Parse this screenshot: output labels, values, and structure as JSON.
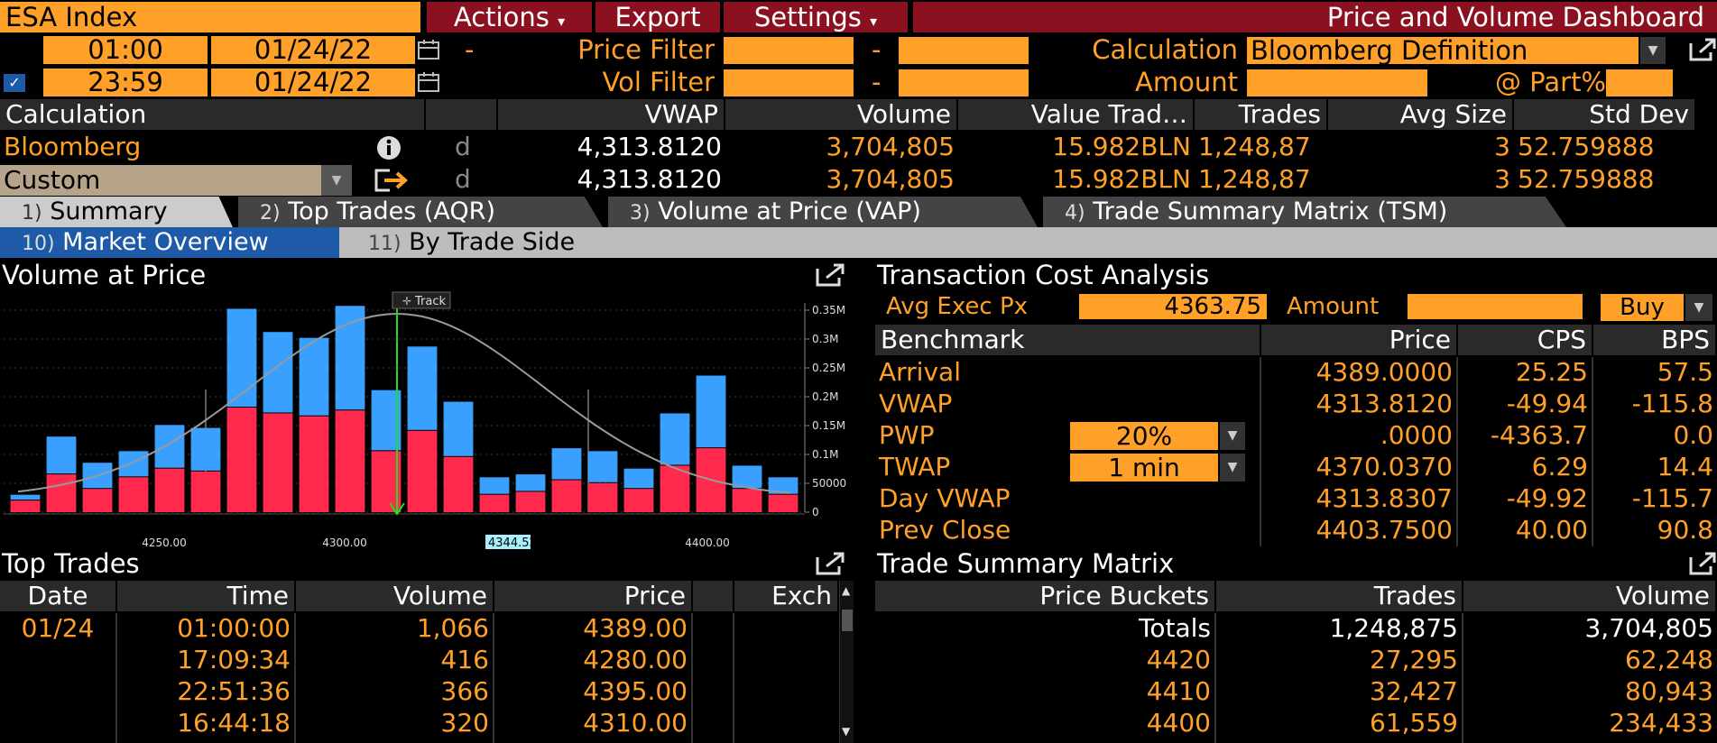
{
  "header": {
    "ticker": "ESA Index",
    "menu": [
      {
        "label": "Actions",
        "arrow": "▾"
      },
      {
        "label": "Export",
        "arrow": ""
      },
      {
        "label": "Settings",
        "arrow": "▾"
      }
    ],
    "title": "Price and Volume Dashboard"
  },
  "filters": {
    "start_time": "01:00",
    "start_date": "01/24/22",
    "end_time": "23:59",
    "end_date": "01/24/22",
    "dash": "-",
    "price_filter_label": "Price Filter",
    "vol_filter_label": "Vol Filter",
    "calculation_label": "Calculation",
    "calculation_value": "Bloomberg Definition",
    "amount_label": "Amount",
    "part_label": "@ Part%"
  },
  "summary_table": {
    "headers": [
      "Calculation",
      "VWAP",
      "Volume",
      "Value Trad…",
      "Trades",
      "Avg Size",
      "Std Dev"
    ],
    "rows": [
      {
        "name": "Bloomberg",
        "flag": "d",
        "vwap": "4,313.8120",
        "volume": "3,704,805",
        "value": "15.982BLN",
        "trades": "1,248,87",
        "avg": "3",
        "std": "52.759888"
      },
      {
        "name": "Custom",
        "flag": "d",
        "vwap": "4,313.8120",
        "volume": "3,704,805",
        "value": "15.982BLN",
        "trades": "1,248,87",
        "avg": "3",
        "std": "52.759888"
      }
    ]
  },
  "tabs": [
    {
      "num": "1)",
      "label": "Summary"
    },
    {
      "num": "2)",
      "label": "Top Trades (AQR)"
    },
    {
      "num": "3)",
      "label": "Volume at Price (VAP)"
    },
    {
      "num": "4)",
      "label": "Trade Summary Matrix (TSM)"
    }
  ],
  "subtabs": [
    {
      "num": "10)",
      "label": "Market Overview",
      "active": true
    },
    {
      "num": "11)",
      "label": "By Trade Side",
      "active": false
    }
  ],
  "vap_panel": {
    "title": "Volume at Price",
    "track_label": "Track",
    "cursor_price": "4344.52"
  },
  "chart_data": {
    "type": "bar",
    "title": "Volume at Price",
    "stacked": true,
    "x_ticks": [
      "4250.00",
      "4300.00",
      "4400.00"
    ],
    "y_ticks": [
      "0.35M",
      "0.3M",
      "0.25M",
      "0.2M",
      "0.15M",
      "0.1M",
      "50000",
      "0"
    ],
    "ylim": [
      0,
      0.36
    ],
    "series": [
      {
        "name": "sell",
        "color": "#ff2a4d",
        "values": [
          0.02,
          0.065,
          0.04,
          0.06,
          0.075,
          0.07,
          0.18,
          0.17,
          0.165,
          0.175,
          0.105,
          0.14,
          0.095,
          0.03,
          0.035,
          0.055,
          0.05,
          0.04,
          0.08,
          0.11,
          0.04,
          0.03
        ]
      },
      {
        "name": "buy",
        "color": "#3aa0ff",
        "values": [
          0.01,
          0.065,
          0.045,
          0.045,
          0.075,
          0.075,
          0.17,
          0.14,
          0.135,
          0.18,
          0.105,
          0.145,
          0.095,
          0.03,
          0.03,
          0.055,
          0.055,
          0.035,
          0.09,
          0.125,
          0.04,
          0.03
        ]
      }
    ]
  },
  "tca": {
    "title": "Transaction Cost Analysis",
    "avg_exec_label": "Avg Exec Px",
    "avg_exec_value": "4363.75",
    "amount_label": "Amount",
    "side": "Buy",
    "headers": [
      "Benchmark",
      "Price",
      "CPS",
      "BPS"
    ],
    "rows": [
      {
        "name": "Arrival",
        "param": "",
        "price": "4389.0000",
        "cps": "25.25",
        "bps": "57.5"
      },
      {
        "name": "VWAP",
        "param": "",
        "price": "4313.8120",
        "cps": "-49.94",
        "bps": "-115.8"
      },
      {
        "name": "PWP",
        "param": "20%",
        "price": ".0000",
        "cps": "-4363.7",
        "bps": "0.0"
      },
      {
        "name": "TWAP",
        "param": "1 min",
        "price": "4370.0370",
        "cps": "6.29",
        "bps": "14.4"
      },
      {
        "name": "Day VWAP",
        "param": "",
        "price": "4313.8307",
        "cps": "-49.92",
        "bps": "-115.7"
      },
      {
        "name": "Prev Close",
        "param": "",
        "price": "4403.7500",
        "cps": "40.00",
        "bps": "90.8"
      }
    ]
  },
  "top_trades": {
    "title": "Top Trades",
    "headers": [
      "Date",
      "Time",
      "Volume",
      "Price",
      "Exch"
    ],
    "rows": [
      {
        "date": "01/24",
        "time": "01:00:00",
        "volume": "1,066",
        "price": "4389.00",
        "exch": ""
      },
      {
        "date": "",
        "time": "17:09:34",
        "volume": "416",
        "price": "4280.00",
        "exch": ""
      },
      {
        "date": "",
        "time": "22:51:36",
        "volume": "366",
        "price": "4395.00",
        "exch": ""
      },
      {
        "date": "",
        "time": "16:44:18",
        "volume": "320",
        "price": "4310.00",
        "exch": ""
      }
    ]
  },
  "tsm": {
    "title": "Trade Summary Matrix",
    "headers": [
      "Price Buckets",
      "Trades",
      "Volume"
    ],
    "rows": [
      {
        "bucket": "Totals",
        "trades": "1,248,875",
        "volume": "3,704,805"
      },
      {
        "bucket": "4420",
        "trades": "27,295",
        "volume": "62,248"
      },
      {
        "bucket": "4410",
        "trades": "32,427",
        "volume": "80,943"
      },
      {
        "bucket": "4400",
        "trades": "61,559",
        "volume": "234,433"
      }
    ]
  }
}
